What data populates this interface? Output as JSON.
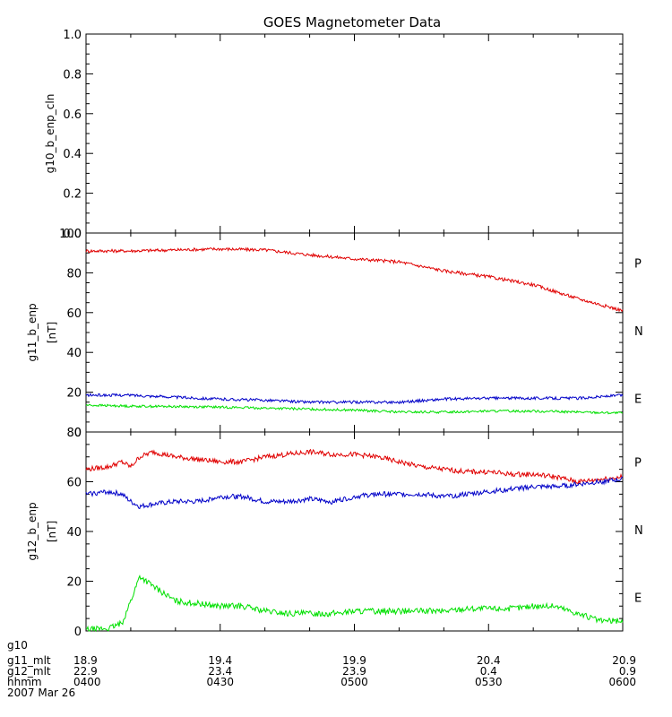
{
  "title": "GOES Magnetometer Data",
  "x_axis": {
    "start": "0400",
    "end": "0600",
    "row_labels": [
      "g10",
      "g11_mlt",
      "g12_mlt",
      "hhmm",
      "2007 Mar 26"
    ],
    "ticks": [
      {
        "g11_mlt": "18.9",
        "g12_mlt": "22.9",
        "hhmm": "0400"
      },
      {
        "g11_mlt": "19.4",
        "g12_mlt": "23.4",
        "hhmm": "0430"
      },
      {
        "g11_mlt": "19.9",
        "g12_mlt": "23.9",
        "hhmm": "0500"
      },
      {
        "g11_mlt": "20.4",
        "g12_mlt": "0.4",
        "hhmm": "0530"
      },
      {
        "g11_mlt": "20.9",
        "g12_mlt": "0.9",
        "hhmm": "0600"
      }
    ]
  },
  "colors": {
    "P": "#e00000",
    "N": "#00e000",
    "E": "#0000c8"
  },
  "chart_data": [
    {
      "type": "line",
      "ylabel": "g10_b_enp_cln",
      "unit": "",
      "ylim": [
        0,
        1
      ],
      "yticks": [
        "0.0",
        "0.2",
        "0.4",
        "0.6",
        "0.8",
        "1.0"
      ],
      "series": []
    },
    {
      "type": "line",
      "ylabel": "g11_b_enp",
      "unit": "[nT]",
      "ylim": [
        0,
        100
      ],
      "yticks": [
        "0",
        "20",
        "40",
        "60",
        "80",
        "100"
      ],
      "x_minutes": [
        0,
        10,
        20,
        30,
        40,
        50,
        60,
        70,
        80,
        90,
        100,
        110,
        120
      ],
      "series": [
        {
          "name": "P",
          "color": "#e00000",
          "noise": 0.8,
          "values": [
            91,
            91,
            91.5,
            92,
            91.5,
            89,
            87,
            85.5,
            81,
            78,
            74,
            67,
            61
          ]
        },
        {
          "name": "N",
          "color": "#00e000",
          "noise": 0.6,
          "values": [
            13.5,
            13,
            12.8,
            12.5,
            12,
            11.5,
            11,
            10,
            10,
            10.5,
            10.5,
            10,
            9.5
          ]
        },
        {
          "name": "E",
          "color": "#0000c8",
          "noise": 0.7,
          "values": [
            18.5,
            18.5,
            17.5,
            16.5,
            16,
            15,
            15,
            15,
            16.5,
            17,
            17,
            17,
            18.5
          ]
        }
      ]
    },
    {
      "type": "line",
      "ylabel": "g12_b_enp",
      "unit": "[nT]",
      "ylim": [
        0,
        80
      ],
      "yticks": [
        "0",
        "20",
        "40",
        "60",
        "80"
      ],
      "x_minutes": [
        0,
        5,
        8,
        10,
        12,
        15,
        20,
        25,
        30,
        35,
        40,
        45,
        50,
        55,
        60,
        65,
        70,
        75,
        80,
        85,
        90,
        95,
        100,
        105,
        110,
        115,
        120
      ],
      "series": [
        {
          "name": "P",
          "color": "#e00000",
          "noise": 1.0,
          "values": [
            65,
            66,
            68,
            66,
            70,
            72,
            70,
            69,
            68,
            68,
            70,
            71,
            72,
            71,
            71,
            70,
            68,
            66,
            65,
            64,
            64,
            63,
            63,
            62,
            60,
            61,
            62
          ]
        },
        {
          "name": "N",
          "color": "#00e000",
          "noise": 1.2,
          "values": [
            0.5,
            1,
            3,
            12,
            22,
            18,
            12,
            11,
            10,
            10,
            8,
            7,
            7,
            7,
            8,
            8,
            8,
            8,
            8,
            9,
            9,
            9,
            10,
            10,
            7,
            4,
            4
          ]
        },
        {
          "name": "E",
          "color": "#0000c8",
          "noise": 1.0,
          "values": [
            55,
            56,
            55,
            52,
            50,
            51,
            52,
            52,
            54,
            54,
            52,
            52,
            53,
            52,
            54,
            55,
            55,
            55,
            54,
            55,
            56,
            57,
            58,
            58,
            59,
            60,
            61
          ]
        }
      ]
    }
  ]
}
